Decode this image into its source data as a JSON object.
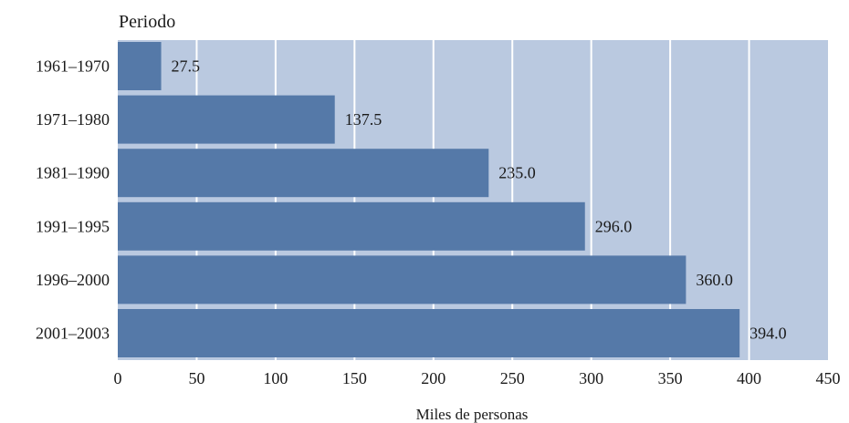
{
  "chart_data": {
    "type": "bar",
    "orientation": "horizontal",
    "ylabel": "Periodo",
    "xlabel": "Miles de personas",
    "categories": [
      "1961–1970",
      "1971–1980",
      "1981–1990",
      "1991–1995",
      "1996–2000",
      "2001–2003"
    ],
    "values": [
      27.5,
      137.5,
      235.0,
      296.0,
      360.0,
      394.0
    ],
    "value_labels": [
      "27.5",
      "137.5",
      "235.0",
      "296.0",
      "360.0",
      "394.0"
    ],
    "xlim": [
      0,
      450
    ],
    "xticks": [
      0,
      50,
      100,
      150,
      200,
      250,
      300,
      350,
      400,
      450
    ],
    "grid": true,
    "colors": {
      "bar": "#5579a8",
      "plot_background": "#bac9e0",
      "gridline": "#ffffff"
    }
  }
}
